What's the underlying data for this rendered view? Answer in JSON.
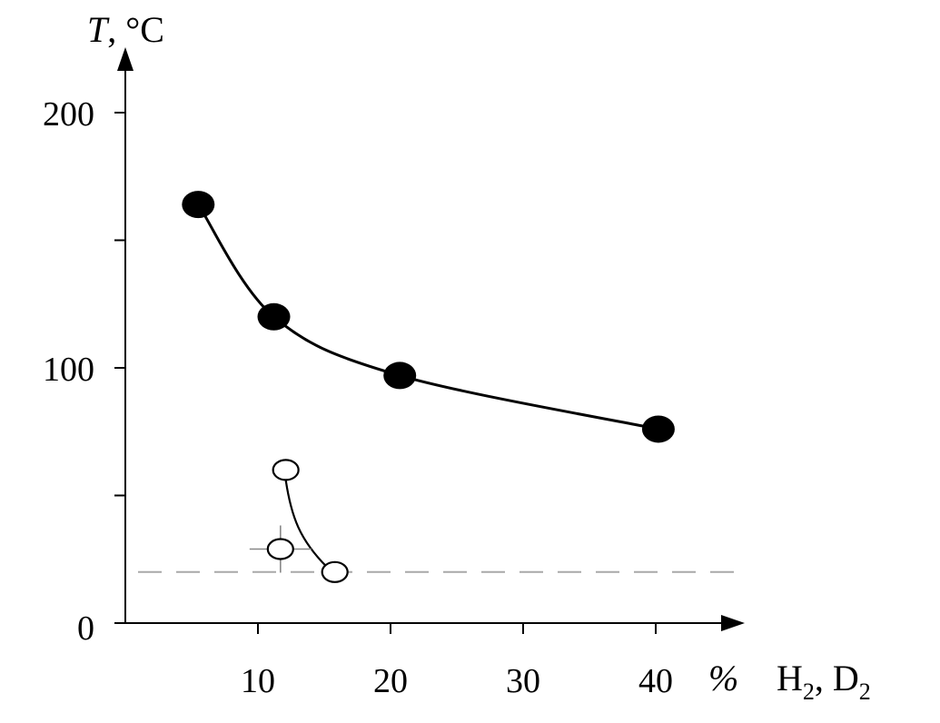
{
  "chart_data": {
    "type": "scatter",
    "title": "",
    "ylabel": {
      "italic": "T",
      "rest": ", °C"
    },
    "xlabel_unit": "%",
    "xlabel": {
      "a": "H",
      "a_sub": "2",
      "sep": ", D",
      "b_sub": "2"
    },
    "xlim": [
      0,
      47
    ],
    "ylim": [
      0,
      200
    ],
    "x_ticks": [
      10,
      20,
      30,
      40
    ],
    "x_tick_labels": [
      "10",
      "20",
      "30",
      "40"
    ],
    "y_ticks": [
      0,
      50,
      100,
      150,
      200
    ],
    "y_tick_labels": [
      "0",
      "",
      "100",
      "",
      "200"
    ],
    "reference_line_y": 20,
    "series": [
      {
        "marker": "filled-circle",
        "points": [
          [
            5.5,
            164
          ],
          [
            11.2,
            120
          ],
          [
            20.7,
            97
          ],
          [
            40.2,
            76
          ]
        ]
      },
      {
        "marker": "open-circle",
        "points": [
          [
            12.1,
            60
          ],
          [
            11.7,
            29
          ],
          [
            15.8,
            20
          ]
        ],
        "error_bar_point": [
          11.7,
          29
        ],
        "curve_points": [
          [
            12.1,
            56
          ],
          [
            15.2,
            22
          ]
        ]
      }
    ]
  }
}
